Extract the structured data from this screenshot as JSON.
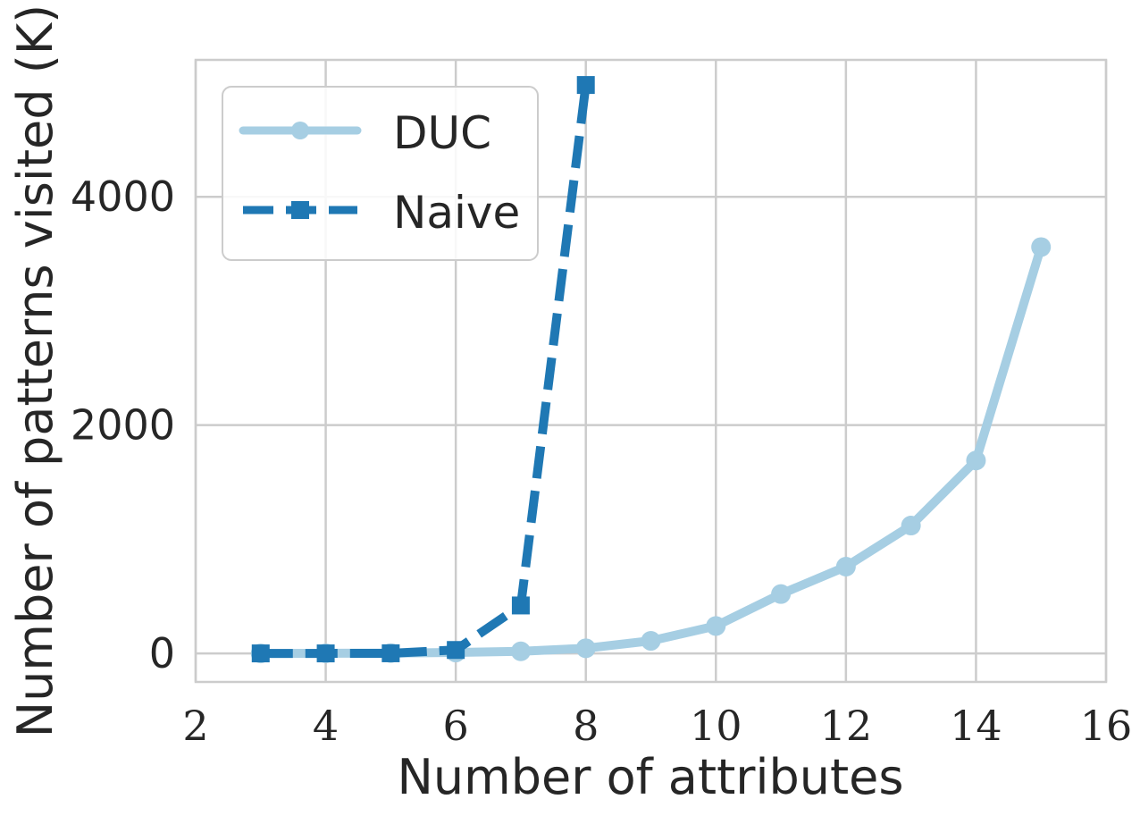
{
  "chart_data": {
    "type": "line",
    "title": "",
    "xlabel": "Number of attributes",
    "ylabel": "Number of patterns visited (K)",
    "xlim": [
      2,
      16
    ],
    "ylim": [
      -250,
      5200
    ],
    "xticks": [
      "2",
      "4",
      "6",
      "8",
      "10",
      "12",
      "14",
      "16"
    ],
    "yticks": [
      "0",
      "2000",
      "4000"
    ],
    "grid": true,
    "legend_position": "top-left",
    "series": [
      {
        "name": "DUC",
        "color": "#a6cee3",
        "marker": "circle",
        "linestyle": "solid",
        "x": [
          3,
          4,
          5,
          6,
          7,
          8,
          9,
          10,
          11,
          12,
          13,
          14,
          15
        ],
        "y": [
          0,
          1,
          3,
          8,
          18,
          45,
          110,
          240,
          520,
          760,
          1120,
          1690,
          3560
        ]
      },
      {
        "name": "Naive",
        "color": "#1f78b4",
        "marker": "square",
        "linestyle": "dashed",
        "x": [
          3,
          4,
          5,
          6,
          7,
          8
        ],
        "y": [
          0,
          0,
          1,
          30,
          420,
          4980
        ]
      }
    ]
  }
}
